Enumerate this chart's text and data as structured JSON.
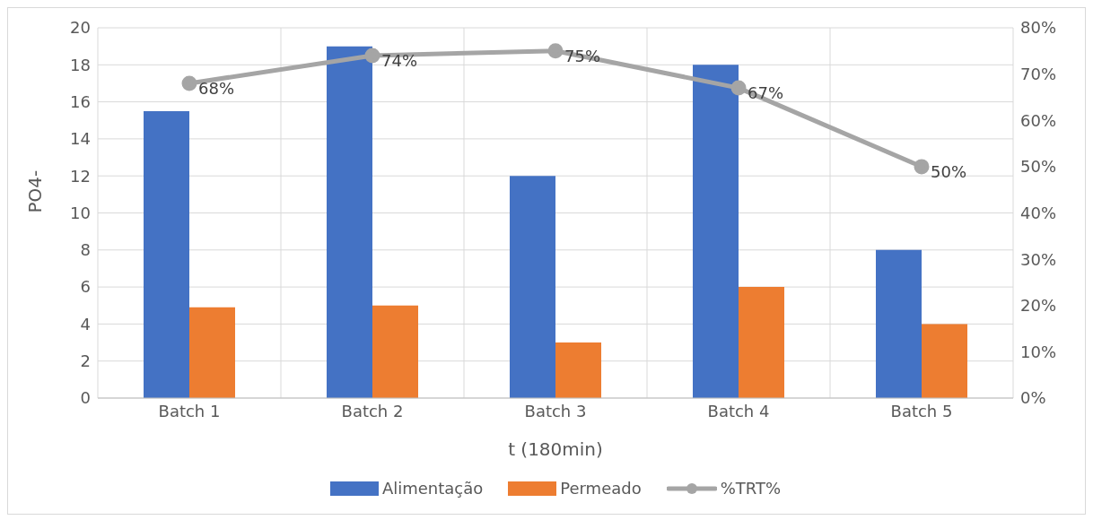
{
  "chart_data": {
    "type": "bar",
    "xlabel": "t (180min)",
    "ylabel": "PO4-",
    "categories": [
      "Batch 1",
      "Batch 2",
      "Batch 3",
      "Batch 4",
      "Batch 5"
    ],
    "series": [
      {
        "name": "Alimentação",
        "color": "#4472c4",
        "values": [
          15.5,
          19,
          12,
          18,
          8
        ]
      },
      {
        "name": "Permeado",
        "color": "#ed7d31",
        "values": [
          4.9,
          5,
          3,
          6,
          4
        ]
      },
      {
        "name": "%TRT%",
        "type": "line",
        "axis": "y2",
        "color": "#a5a5a5",
        "marker": "circle",
        "values": [
          68,
          74,
          75,
          67,
          50
        ],
        "value_labels": [
          "68%",
          "74%",
          "75%",
          "67%",
          "50%"
        ]
      }
    ],
    "ylim": [
      0,
      20
    ],
    "yticks": [
      0,
      2,
      4,
      6,
      8,
      10,
      12,
      14,
      16,
      18,
      20
    ],
    "y2lim": [
      0,
      80
    ],
    "y2ticks": [
      {
        "value": 0,
        "label": "0%"
      },
      {
        "value": 10,
        "label": "10%"
      },
      {
        "value": 20,
        "label": "20%"
      },
      {
        "value": 30,
        "label": "30%"
      },
      {
        "value": 40,
        "label": "40%"
      },
      {
        "value": 50,
        "label": "50%"
      },
      {
        "value": 60,
        "label": "60%"
      },
      {
        "value": 70,
        "label": "70%"
      },
      {
        "value": 80,
        "label": "80%"
      }
    ],
    "grid": true,
    "legend": "bottom"
  }
}
